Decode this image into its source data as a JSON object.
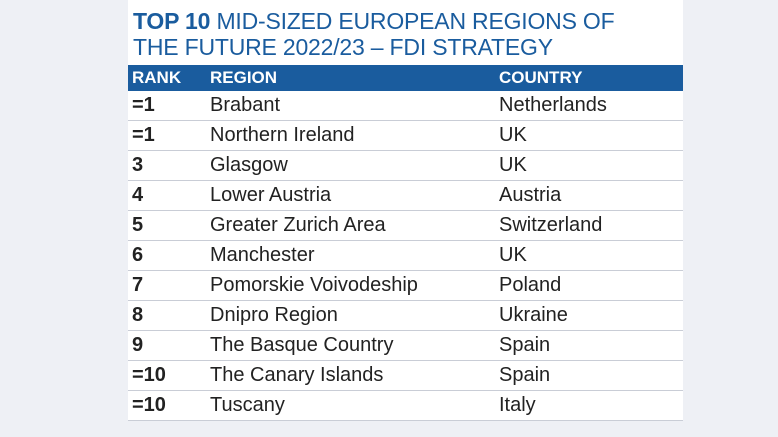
{
  "title": {
    "bold": "TOP 10",
    "rest_line1": "MID-SIZED EUROPEAN REGIONS OF",
    "line2": "THE FUTURE 2022/23 – FDI STRATEGY"
  },
  "table": {
    "headers": [
      "RANK",
      "REGION",
      "COUNTRY"
    ],
    "rows": [
      {
        "rank": "=1",
        "region": "Brabant",
        "country": "Netherlands"
      },
      {
        "rank": "=1",
        "region": "Northern Ireland",
        "country": "UK"
      },
      {
        "rank": "3",
        "region": "Glasgow",
        "country": "UK"
      },
      {
        "rank": "4",
        "region": "Lower Austria",
        "country": "Austria"
      },
      {
        "rank": "5",
        "region": "Greater Zurich Area",
        "country": "Switzerland"
      },
      {
        "rank": "6",
        "region": "Manchester",
        "country": "UK"
      },
      {
        "rank": "7",
        "region": "Pomorskie Voivodeship",
        "country": "Poland"
      },
      {
        "rank": "8",
        "region": "Dnipro Region",
        "country": "Ukraine"
      },
      {
        "rank": "9",
        "region": "The Basque Country",
        "country": "Spain"
      },
      {
        "rank": "=10",
        "region": "The Canary Islands",
        "country": "Spain"
      },
      {
        "rank": "=10",
        "region": "Tuscany",
        "country": "Italy"
      }
    ]
  },
  "colors": {
    "accent": "#1a5c9e",
    "background": "#eef0f5"
  }
}
